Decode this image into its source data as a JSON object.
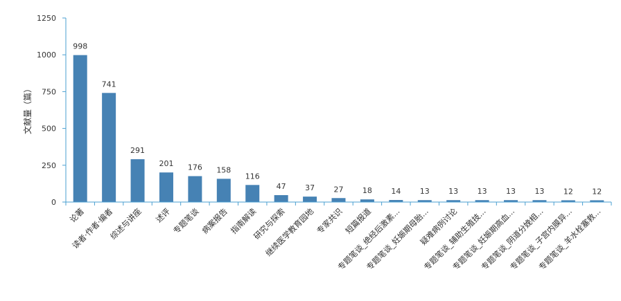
{
  "chart_data": {
    "type": "bar",
    "ylabel": "文献量（篇）",
    "ylim": [
      0,
      1250
    ],
    "yticks": [
      0,
      250,
      500,
      750,
      1000,
      1250
    ],
    "grid": false,
    "legend": "none",
    "bar_color": "#4682b4",
    "axis_color": "#4a9fd0",
    "categories": [
      "论著",
      "读者·作者·编者",
      "综述与讲座",
      "述评",
      "专题笔谈",
      "病案报告",
      "指南解读",
      "研究与探索",
      "继续医学教育园地",
      "专家共识",
      "短篇报道",
      "专题笔谈_绝经后激素...",
      "专题笔谈_妊娠期母胎...",
      "疑难病例讨论",
      "专题笔谈_辅助生殖技...",
      "专题笔谈_妊娠期高血...",
      "专题笔谈_阴道分娩相...",
      "专题笔谈_子宫内膜异...",
      "专题笔谈_羊水栓塞救..."
    ],
    "values": [
      998,
      741,
      291,
      201,
      176,
      158,
      116,
      47,
      37,
      27,
      18,
      14,
      13,
      13,
      13,
      13,
      13,
      12,
      12
    ]
  }
}
